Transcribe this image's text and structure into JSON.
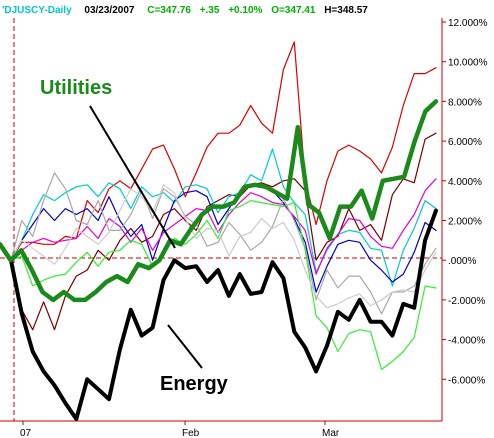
{
  "header": {
    "symbol": "'DJUSCY-Daily",
    "date": "03/23/2007",
    "close": "C=347.76",
    "change": "+.35",
    "pct": "+0.10%",
    "open": "O=347.41",
    "high": "H=348.57"
  },
  "colors": {
    "symbol": "#00c8c8",
    "date": "#000000",
    "quote": "#00b000",
    "high": "#000000",
    "axis": "#cc0000",
    "utilities": "#1a8a1a",
    "energy": "#000000"
  },
  "chart_data": {
    "type": "line",
    "y_unit": "percent",
    "ylim": [
      -8,
      12
    ],
    "y_ticks": [
      "12.000%",
      "10.000%",
      "8.000%",
      "6.000%",
      "4.000%",
      "2.000%",
      ".000%",
      "-2.000%",
      "-4.000%",
      "-6.000%"
    ],
    "x_ticks": [
      "07",
      "Feb",
      "Mar"
    ],
    "annotations": [
      "Utilities",
      "Energy"
    ],
    "series": [
      {
        "name": "Utilities",
        "color": "#1a8a1a",
        "width": 4.5,
        "values": [
          0.8,
          0,
          0.5,
          -0.5,
          -1.6,
          -2,
          -1.6,
          -2,
          -2,
          -1.6,
          -1.1,
          -0.8,
          -1.1,
          -0.2,
          -0.4,
          0,
          1,
          0.8,
          1.6,
          2.3,
          2.7,
          2.7,
          2.9,
          3.7,
          3.8,
          3.7,
          3.4,
          3.1,
          6.7,
          2.8,
          2.4,
          1.1,
          2.7,
          2.7,
          3.5,
          2.1,
          4,
          4.1,
          4.2,
          6,
          7.5,
          8
        ]
      },
      {
        "name": "Energy",
        "color": "#000000",
        "width": 4,
        "values": [
          0.8,
          0,
          -2.7,
          -4.6,
          -5.6,
          -6.3,
          -7.2,
          -8,
          -6,
          -6.5,
          -7,
          -4.5,
          -2.5,
          -3.8,
          -3.4,
          -1,
          0,
          -0.4,
          -0.3,
          -1.1,
          -0.5,
          -1.8,
          -0.7,
          -1.7,
          -1.6,
          -0.1,
          -0.9,
          -3.6,
          -4.4,
          -5.6,
          -4.3,
          -2.6,
          -3,
          -2,
          -3.1,
          -3.1,
          -3.8,
          -2.2,
          -2.4,
          1,
          2.5
        ]
      },
      {
        "name": "",
        "color": "#dd0000",
        "width": 1.2,
        "values": [
          0.8,
          0,
          0.9,
          0.9,
          0.8,
          0.8,
          1.2,
          1.1,
          3,
          2.4,
          3.6,
          4,
          3.6,
          4.6,
          5.6,
          5.8,
          4.6,
          3.2,
          4.4,
          5.7,
          6.4,
          6.4,
          6.8,
          7.8,
          6.9,
          6.4,
          9.6,
          11,
          4,
          1.8,
          4,
          5.5,
          5.8,
          5.5,
          5.1,
          4.4,
          5.7,
          7.8,
          9.4,
          9.4,
          9.7
        ]
      },
      {
        "name": "",
        "color": "#7a0000",
        "width": 1.2,
        "values": [
          0.8,
          0,
          -2.5,
          -3.5,
          -2.1,
          -3.5,
          -1.8,
          -0.8,
          -0.5,
          0.5,
          0,
          1,
          1.6,
          0.9,
          1.2,
          2.3,
          2.6,
          2,
          1.5,
          2.7,
          3,
          3.3,
          3.2,
          3.8,
          3.9,
          3.7,
          4,
          4.1,
          3.5,
          0,
          0.9,
          1.2,
          2.6,
          1.5,
          1.8,
          1,
          3.3,
          4.1,
          3.9,
          6.1,
          6.4
        ]
      },
      {
        "name": "",
        "color": "#00cccc",
        "width": 1.2,
        "values": [
          0.8,
          0,
          1,
          2.3,
          3.3,
          3,
          3.4,
          3.7,
          3.8,
          3.2,
          3.9,
          3.6,
          2.6,
          3.7,
          3.2,
          3.4,
          2.9,
          3.7,
          3.8,
          3.6,
          2.4,
          3.2,
          3.4,
          4.3,
          4,
          5.6,
          3.7,
          2.9,
          2.3,
          -0.6,
          0.5,
          1.3,
          1.5,
          1.4,
          0.6,
          0.5,
          -1.3,
          0.5,
          1.6,
          3,
          2.6
        ]
      },
      {
        "name": "",
        "color": "#0000cc",
        "width": 1.2,
        "values": [
          0.8,
          0,
          1,
          1.8,
          2.6,
          2,
          2.6,
          2.3,
          2.6,
          2,
          3.2,
          2,
          1.2,
          1.8,
          0,
          1.6,
          3,
          3.4,
          3.5,
          3.2,
          1.8,
          2.6,
          3.4,
          3.8,
          3.7,
          3.5,
          2.9,
          2.1,
          0.9,
          -1.6,
          -0.3,
          0.8,
          1,
          0.9,
          0,
          -0.5,
          -1.1,
          -0.7,
          0.4,
          1.9,
          1.5
        ]
      },
      {
        "name": "",
        "color": "#dd00dd",
        "width": 1.2,
        "values": [
          0.8,
          0,
          0.5,
          0.9,
          1.1,
          0.9,
          1,
          1.1,
          1.7,
          1.1,
          2.1,
          1.7,
          0.9,
          1.6,
          0.5,
          1.4,
          1.8,
          2.2,
          2.6,
          2.5,
          1.4,
          2.3,
          2.9,
          3.4,
          3.2,
          2.9,
          2.8,
          2.2,
          1.5,
          -0.7,
          0.6,
          1.3,
          2.1,
          2,
          1.2,
          0.7,
          0.6,
          1.5,
          2.3,
          3.5,
          4.1
        ]
      },
      {
        "name": "",
        "color": "#a8a8a8",
        "width": 1.2,
        "values": [
          0.8,
          0,
          2,
          1.2,
          3,
          4.4,
          3.6,
          2,
          1.8,
          3,
          1.5,
          1.5,
          2.3,
          3.5,
          2.1,
          3.6,
          3.2,
          2.2,
          1.8,
          0.7,
          0.9,
          1.9,
          1.3,
          0.5,
          0.9,
          1.7,
          3.1,
          2,
          0.6,
          -2,
          -0.5,
          -1.4,
          -0.8,
          -0.8,
          -1.6,
          -2.7,
          -1.6,
          -1.6,
          -1.3,
          -0.2,
          0.6
        ]
      },
      {
        "name": "",
        "color": "#33ee33",
        "width": 1.2,
        "values": [
          0.8,
          0,
          0.2,
          -1.3,
          -1,
          -0.8,
          -0.7,
          -0.1,
          0.4,
          -0.3,
          0.4,
          0.5,
          1,
          0.8,
          -0.3,
          0.3,
          1.1,
          0.8,
          1.3,
          2,
          1.1,
          2.5,
          2.7,
          3,
          2.9,
          2.8,
          2.7,
          2.9,
          0.5,
          -2.8,
          -3.4,
          -4.6,
          -3.7,
          -3.5,
          -3.6,
          -5.5,
          -5.1,
          -4.6,
          -3.9,
          -1.3,
          -1.4
        ]
      },
      {
        "name": "",
        "color": "#cccccc",
        "width": 1.2,
        "values": [
          0.8,
          0,
          1,
          0.6,
          0.2,
          -0.2,
          0.6,
          1.6,
          1.2,
          0.8,
          1.4,
          2.5,
          3.6,
          3.2,
          2.4,
          3.8,
          3.4,
          2.1,
          1.1,
          1.6,
          1.5,
          0.2,
          1.2,
          1.4,
          2.1,
          1.6,
          1.9,
          1,
          -0.5,
          -1.8,
          -2.4,
          -2.2,
          -1.9,
          -1.7,
          -2.3,
          -2,
          -1.6,
          -1.5,
          -1.6,
          -0.5,
          0.4
        ]
      }
    ]
  }
}
